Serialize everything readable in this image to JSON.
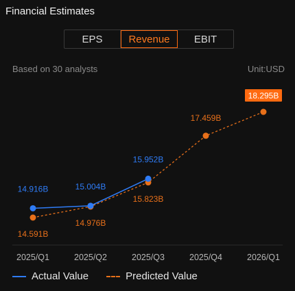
{
  "header": {
    "title": "Financial Estimates"
  },
  "tabs": [
    {
      "label": "EPS",
      "active": false
    },
    {
      "label": "Revenue",
      "active": true
    },
    {
      "label": "EBIT",
      "active": false
    }
  ],
  "meta": {
    "source": "Based on 30 analysts",
    "unit": "Unit:USD"
  },
  "colors": {
    "actual": "#2f7cf6",
    "predicted": "#e8701a",
    "highlight": "#ff6a10"
  },
  "chart_data": {
    "type": "line",
    "categories": [
      "2025/Q1",
      "2025/Q2",
      "2025/Q3",
      "2025/Q4",
      "2026/Q1"
    ],
    "series": [
      {
        "name": "Actual Value",
        "values": [
          14.916,
          15.004,
          15.952,
          null,
          null
        ],
        "labels": [
          "14.916B",
          "15.004B",
          "15.952B",
          null,
          null
        ]
      },
      {
        "name": "Predicted Value",
        "values": [
          14.591,
          14.976,
          15.823,
          17.459,
          18.295
        ],
        "labels": [
          "14.591B",
          "14.976B",
          "15.823B",
          "17.459B",
          "18.295B"
        ]
      }
    ],
    "highlighted_label": "18.295B",
    "grid": false,
    "legend": "bottom-left"
  },
  "legend": {
    "actual": "Actual Value",
    "predicted": "Predicted Value"
  }
}
